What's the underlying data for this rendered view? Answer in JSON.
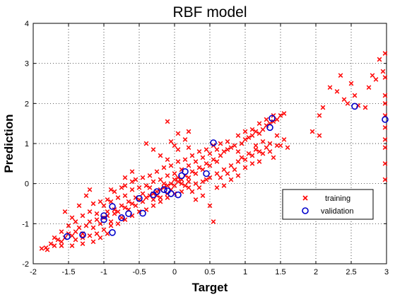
{
  "chart_data": {
    "type": "scatter",
    "title": "RBF model",
    "xlabel": "Target",
    "ylabel": "Prediction",
    "xlim": [
      -2,
      3
    ],
    "ylim": [
      -2,
      4
    ],
    "xticks": [
      "-2",
      "-1.5",
      "-1",
      "-0.5",
      "0",
      "0.5",
      "1",
      "1.5",
      "2",
      "2.5",
      "3"
    ],
    "yticks": [
      "-2",
      "-1",
      "0",
      "1",
      "2",
      "3",
      "4"
    ],
    "grid": true,
    "legend_position": "lower-right",
    "series": [
      {
        "name": "training",
        "marker": "x",
        "color": "#ff0000",
        "points": [
          [
            -1.88,
            -1.62
          ],
          [
            -1.82,
            -1.6
          ],
          [
            -1.75,
            -1.5
          ],
          [
            -1.7,
            -1.55
          ],
          [
            -1.65,
            -1.4
          ],
          [
            -1.6,
            -1.45
          ],
          [
            -1.55,
            -1.35
          ],
          [
            -1.5,
            -1.25
          ],
          [
            -1.45,
            -1.3
          ],
          [
            -1.4,
            -1.2
          ],
          [
            -1.35,
            -1.1
          ],
          [
            -1.3,
            -1.25
          ],
          [
            -1.25,
            -1.05
          ],
          [
            -1.2,
            -0.95
          ],
          [
            -1.15,
            -1.1
          ],
          [
            -1.1,
            -0.9
          ],
          [
            -1.05,
            -1.0
          ],
          [
            -1.0,
            -0.85
          ],
          [
            -0.95,
            -0.8
          ],
          [
            -0.9,
            -0.95
          ],
          [
            -0.85,
            -0.75
          ],
          [
            -0.8,
            -0.7
          ],
          [
            -0.75,
            -0.85
          ],
          [
            -0.7,
            -0.6
          ],
          [
            -0.65,
            -0.65
          ],
          [
            -0.6,
            -0.5
          ],
          [
            -0.55,
            -0.55
          ],
          [
            -0.5,
            -0.4
          ],
          [
            -0.45,
            -0.45
          ],
          [
            -0.4,
            -0.35
          ],
          [
            -0.35,
            -0.3
          ],
          [
            -0.3,
            -0.25
          ],
          [
            -0.25,
            -0.2
          ],
          [
            -0.2,
            -0.15
          ],
          [
            -0.15,
            -0.1
          ],
          [
            -0.1,
            -0.05
          ],
          [
            -0.05,
            0.0
          ],
          [
            0.0,
            -0.05
          ],
          [
            0.05,
            0.05
          ],
          [
            0.1,
            0.1
          ],
          [
            0.15,
            0.2
          ],
          [
            0.2,
            0.15
          ],
          [
            0.25,
            0.3
          ],
          [
            0.3,
            0.25
          ],
          [
            0.35,
            0.4
          ],
          [
            0.4,
            0.35
          ],
          [
            0.45,
            0.5
          ],
          [
            0.5,
            0.45
          ],
          [
            0.55,
            0.6
          ],
          [
            0.6,
            0.55
          ],
          [
            0.65,
            0.7
          ],
          [
            0.7,
            0.8
          ],
          [
            0.75,
            0.85
          ],
          [
            0.8,
            0.9
          ],
          [
            0.85,
            0.95
          ],
          [
            0.9,
            0.8
          ],
          [
            0.95,
            1.0
          ],
          [
            1.0,
            1.1
          ],
          [
            1.05,
            1.15
          ],
          [
            1.1,
            1.2
          ],
          [
            1.15,
            1.3
          ],
          [
            1.2,
            1.25
          ],
          [
            1.25,
            1.35
          ],
          [
            1.3,
            1.45
          ],
          [
            1.35,
            1.5
          ],
          [
            1.4,
            1.55
          ],
          [
            1.45,
            1.6
          ],
          [
            1.5,
            1.7
          ],
          [
            -1.6,
            -1.2
          ],
          [
            -1.5,
            -1.05
          ],
          [
            -1.4,
            -0.95
          ],
          [
            -1.3,
            -0.8
          ],
          [
            -1.2,
            -0.7
          ],
          [
            -1.1,
            -0.75
          ],
          [
            -1.0,
            -0.55
          ],
          [
            -0.9,
            -0.45
          ],
          [
            -0.8,
            -0.35
          ],
          [
            -0.7,
            -0.3
          ],
          [
            -0.6,
            -0.15
          ],
          [
            -0.5,
            -0.1
          ],
          [
            -0.4,
            -0.05
          ],
          [
            -0.3,
            0.05
          ],
          [
            -0.2,
            0.1
          ],
          [
            -0.1,
            0.2
          ],
          [
            0.0,
            0.25
          ],
          [
            0.1,
            0.35
          ],
          [
            0.2,
            0.45
          ],
          [
            0.3,
            0.55
          ],
          [
            0.4,
            0.65
          ],
          [
            0.5,
            0.75
          ],
          [
            -1.7,
            -1.35
          ],
          [
            -1.6,
            -1.55
          ],
          [
            -1.4,
            -1.4
          ],
          [
            -1.3,
            -1.35
          ],
          [
            -1.2,
            -1.3
          ],
          [
            -1.1,
            -1.25
          ],
          [
            -1.0,
            -1.15
          ],
          [
            -0.9,
            -1.05
          ],
          [
            -0.8,
            -1.0
          ],
          [
            -0.7,
            -0.9
          ],
          [
            -0.6,
            -0.8
          ],
          [
            -0.5,
            -0.7
          ],
          [
            -0.4,
            -0.65
          ],
          [
            -0.3,
            -0.55
          ],
          [
            -0.2,
            -0.45
          ],
          [
            -0.1,
            -0.35
          ],
          [
            0.0,
            -0.25
          ],
          [
            0.1,
            -0.2
          ],
          [
            0.2,
            -0.1
          ],
          [
            0.3,
            0.0
          ],
          [
            0.4,
            0.05
          ],
          [
            0.5,
            0.15
          ],
          [
            0.6,
            0.25
          ],
          [
            0.7,
            0.35
          ],
          [
            0.8,
            0.45
          ],
          [
            0.9,
            0.55
          ],
          [
            1.0,
            0.6
          ],
          [
            1.1,
            0.7
          ],
          [
            1.2,
            0.8
          ],
          [
            1.3,
            0.9
          ],
          [
            -0.35,
            -0.1
          ],
          [
            -0.25,
            -0.3
          ],
          [
            -0.15,
            0.0
          ],
          [
            -0.05,
            -0.15
          ],
          [
            0.05,
            0.15
          ],
          [
            0.15,
            -0.05
          ],
          [
            -0.3,
            -0.4
          ],
          [
            -0.2,
            -0.35
          ],
          [
            -0.1,
            -0.25
          ],
          [
            0.0,
            0.1
          ],
          [
            0.1,
            0.0
          ],
          [
            0.2,
            0.05
          ],
          [
            -0.45,
            -0.25
          ],
          [
            -0.55,
            -0.35
          ],
          [
            -0.65,
            -0.45
          ],
          [
            -0.75,
            -0.55
          ],
          [
            -0.85,
            -0.65
          ],
          [
            -0.95,
            -0.7
          ],
          [
            -1.15,
            -0.5
          ],
          [
            -1.05,
            -0.45
          ],
          [
            -0.95,
            -0.4
          ],
          [
            -0.85,
            -0.2
          ],
          [
            -1.25,
            -0.3
          ],
          [
            -1.35,
            -0.55
          ],
          [
            -1.45,
            -0.85
          ],
          [
            -1.55,
            -0.7
          ],
          [
            -0.7,
            -0.05
          ],
          [
            -0.6,
            0.05
          ],
          [
            -0.45,
            0.15
          ],
          [
            -0.35,
            0.2
          ],
          [
            -0.25,
            0.3
          ],
          [
            -0.15,
            0.4
          ],
          [
            -0.05,
            0.45
          ],
          [
            0.05,
            0.55
          ],
          [
            0.15,
            0.6
          ],
          [
            0.25,
            0.7
          ],
          [
            0.35,
            0.8
          ],
          [
            0.45,
            0.85
          ],
          [
            0.55,
            0.95
          ],
          [
            0.6,
            0.85
          ],
          [
            0.65,
            1.0
          ],
          [
            0.75,
            1.05
          ],
          [
            0.9,
            1.2
          ],
          [
            1.0,
            1.3
          ],
          [
            1.1,
            1.35
          ],
          [
            1.2,
            1.5
          ],
          [
            1.3,
            1.6
          ],
          [
            1.4,
            1.7
          ],
          [
            0.3,
            -0.4
          ],
          [
            0.4,
            -0.3
          ],
          [
            0.5,
            -0.55
          ],
          [
            0.55,
            -0.95
          ],
          [
            0.6,
            -0.1
          ],
          [
            0.7,
            -0.05
          ],
          [
            0.8,
            0.1
          ],
          [
            0.9,
            0.2
          ],
          [
            1.0,
            0.4
          ],
          [
            1.1,
            0.5
          ],
          [
            1.2,
            0.55
          ],
          [
            1.4,
            0.65
          ],
          [
            1.5,
            0.95
          ],
          [
            1.55,
            1.1
          ],
          [
            1.45,
            1.2
          ],
          [
            1.35,
            1.0
          ],
          [
            1.25,
            1.05
          ],
          [
            1.15,
            0.95
          ],
          [
            -0.05,
            1.05
          ],
          [
            0.0,
            0.95
          ],
          [
            -0.1,
            1.55
          ],
          [
            0.2,
            1.3
          ],
          [
            0.15,
            1.1
          ],
          [
            0.05,
            0.85
          ],
          [
            1.55,
            1.75
          ],
          [
            1.95,
            1.3
          ],
          [
            2.05,
            1.7
          ],
          [
            2.1,
            1.9
          ],
          [
            2.2,
            2.4
          ],
          [
            2.3,
            2.3
          ],
          [
            2.35,
            2.7
          ],
          [
            2.4,
            2.1
          ],
          [
            2.45,
            2.0
          ],
          [
            2.5,
            2.5
          ],
          [
            2.55,
            2.2
          ],
          [
            2.6,
            1.95
          ],
          [
            2.7,
            1.9
          ],
          [
            2.75,
            2.4
          ],
          [
            2.8,
            2.7
          ],
          [
            2.85,
            2.6
          ],
          [
            2.9,
            3.1
          ],
          [
            2.95,
            2.8
          ],
          [
            2.98,
            3.25
          ],
          [
            2.99,
            2.65
          ],
          [
            3.0,
            2.2
          ],
          [
            3.0,
            1.7
          ],
          [
            3.0,
            1.1
          ],
          [
            3.0,
            0.9
          ],
          [
            3.0,
            0.5
          ],
          [
            3.0,
            0.1
          ],
          [
            3.0,
            1.4
          ],
          [
            3.0,
            2.0
          ],
          [
            2.05,
            1.2
          ],
          [
            1.6,
            0.9
          ],
          [
            -0.4,
            1.0
          ],
          [
            -0.3,
            0.85
          ],
          [
            -0.2,
            0.7
          ],
          [
            -0.1,
            0.6
          ],
          [
            0.05,
            1.25
          ],
          [
            0.2,
            0.9
          ],
          [
            -1.15,
            -1.45
          ],
          [
            -1.05,
            -1.35
          ],
          [
            -0.95,
            -1.25
          ],
          [
            -1.3,
            -1.5
          ],
          [
            -1.45,
            -1.55
          ],
          [
            -1.8,
            -1.65
          ],
          [
            -1.2,
            -0.15
          ],
          [
            -0.9,
            -0.15
          ],
          [
            -0.75,
            -0.1
          ],
          [
            -0.55,
            0.1
          ],
          [
            -0.7,
            0.15
          ],
          [
            -0.6,
            0.3
          ],
          [
            0.25,
            -0.2
          ],
          [
            0.35,
            -0.1
          ],
          [
            0.45,
            0.1
          ],
          [
            0.65,
            0.15
          ],
          [
            0.75,
            0.25
          ],
          [
            0.85,
            0.35
          ],
          [
            0.95,
            0.65
          ],
          [
            1.05,
            0.75
          ],
          [
            1.15,
            0.85
          ],
          [
            1.25,
            0.75
          ],
          [
            1.35,
            0.8
          ],
          [
            1.45,
            0.95
          ]
        ]
      },
      {
        "name": "validation",
        "marker": "o",
        "color": "#0000cc",
        "points": [
          [
            -1.52,
            -1.32
          ],
          [
            -1.3,
            -1.28
          ],
          [
            -1.0,
            -0.9
          ],
          [
            -1.0,
            -0.8
          ],
          [
            -0.88,
            -0.57
          ],
          [
            -0.88,
            -1.22
          ],
          [
            -0.75,
            -0.85
          ],
          [
            -0.65,
            -0.75
          ],
          [
            -0.5,
            -0.37
          ],
          [
            -0.45,
            -0.74
          ],
          [
            -0.3,
            -0.28
          ],
          [
            -0.25,
            -0.2
          ],
          [
            -0.15,
            -0.15
          ],
          [
            -0.1,
            -0.18
          ],
          [
            -0.05,
            -0.25
          ],
          [
            0.05,
            -0.28
          ],
          [
            0.1,
            0.2
          ],
          [
            0.15,
            0.3
          ],
          [
            0.45,
            0.25
          ],
          [
            0.55,
            1.02
          ],
          [
            1.35,
            1.4
          ],
          [
            1.38,
            1.63
          ],
          [
            2.55,
            1.93
          ],
          [
            2.98,
            1.6
          ]
        ]
      }
    ]
  },
  "legend": {
    "training_label": "training",
    "validation_label": "validation"
  }
}
